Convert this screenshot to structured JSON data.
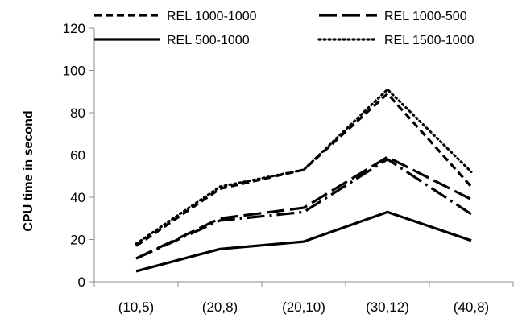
{
  "chart_data": {
    "type": "line",
    "categories": [
      "(10,5)",
      "(20,8)",
      "(20,10)",
      "(30,12)",
      "(40,8)"
    ],
    "series": [
      {
        "name": "REL 1000-1000",
        "values": [
          17,
          44,
          53,
          89,
          45
        ],
        "dash": "dashed"
      },
      {
        "name": "REL 1000-500",
        "values": [
          11,
          30,
          35,
          59,
          39
        ],
        "dash": "longdash"
      },
      {
        "name": "REL 500-1000",
        "values": [
          5,
          15.5,
          19,
          33,
          19.5
        ],
        "dash": "solid"
      },
      {
        "name": "REL 1500-1000",
        "values": [
          18,
          45,
          53,
          91,
          52
        ],
        "dash": "dotted"
      },
      {
        "name": "",
        "values": [
          11,
          29,
          33,
          58,
          32
        ],
        "dash": "dashdot"
      }
    ],
    "xlabel": "",
    "ylabel": "CPU time in second",
    "ylim": [
      0,
      120
    ],
    "yticks": [
      "0",
      "20",
      "40",
      "60",
      "80",
      "100",
      "120"
    ],
    "legend_position": "top",
    "grid": false,
    "line_color": "#000000"
  }
}
